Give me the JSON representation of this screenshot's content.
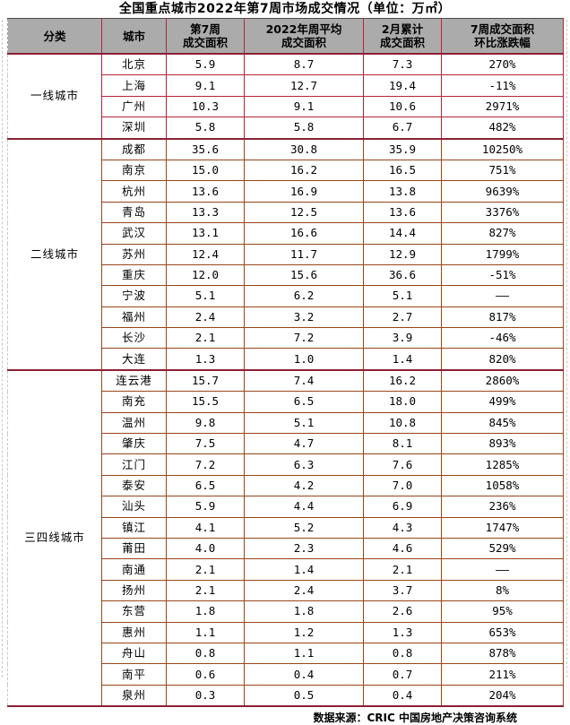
{
  "chart_data": {
    "type": "table",
    "title": "全国重点城市2022年第7周市场成交情况（单位：万㎡）",
    "source": "数据来源：CRIC 中国房地产决策咨询系统",
    "columns": [
      "分类",
      "城市",
      "第7周\n成交面积",
      "2022年周平均\n成交面积",
      "2月累计\n成交面积",
      "7周成交面积\n环比涨跌幅"
    ],
    "sections": [
      {
        "category": "一线城市",
        "border_color": "#b3243a",
        "rows": [
          {
            "city": "北京",
            "week7_area": "5.9",
            "weekly_avg_area": "8.7",
            "feb_total_area": "7.3",
            "wow_change": "270%"
          },
          {
            "city": "上海",
            "week7_area": "9.1",
            "weekly_avg_area": "12.7",
            "feb_total_area": "19.4",
            "wow_change": "-11%"
          },
          {
            "city": "广州",
            "week7_area": "10.3",
            "weekly_avg_area": "9.1",
            "feb_total_area": "10.6",
            "wow_change": "2971%"
          },
          {
            "city": "深圳",
            "week7_area": "5.8",
            "weekly_avg_area": "5.8",
            "feb_total_area": "6.7",
            "wow_change": "482%"
          }
        ]
      },
      {
        "category": "二线城市",
        "border_color": "#9a4518",
        "rows": [
          {
            "city": "成都",
            "week7_area": "35.6",
            "weekly_avg_area": "30.8",
            "feb_total_area": "35.9",
            "wow_change": "10250%"
          },
          {
            "city": "南京",
            "week7_area": "15.0",
            "weekly_avg_area": "16.2",
            "feb_total_area": "16.5",
            "wow_change": "751%"
          },
          {
            "city": "杭州",
            "week7_area": "13.6",
            "weekly_avg_area": "16.9",
            "feb_total_area": "13.8",
            "wow_change": "9639%"
          },
          {
            "city": "青岛",
            "week7_area": "13.3",
            "weekly_avg_area": "12.5",
            "feb_total_area": "13.6",
            "wow_change": "3376%"
          },
          {
            "city": "武汉",
            "week7_area": "13.1",
            "weekly_avg_area": "16.6",
            "feb_total_area": "14.4",
            "wow_change": "827%"
          },
          {
            "city": "苏州",
            "week7_area": "12.4",
            "weekly_avg_area": "11.7",
            "feb_total_area": "12.9",
            "wow_change": "1799%"
          },
          {
            "city": "重庆",
            "week7_area": "12.0",
            "weekly_avg_area": "15.6",
            "feb_total_area": "36.6",
            "wow_change": "-51%"
          },
          {
            "city": "宁波",
            "week7_area": "5.1",
            "weekly_avg_area": "6.2",
            "feb_total_area": "5.1",
            "wow_change": "——"
          },
          {
            "city": "福州",
            "week7_area": "2.4",
            "weekly_avg_area": "3.2",
            "feb_total_area": "2.7",
            "wow_change": "817%"
          },
          {
            "city": "长沙",
            "week7_area": "2.1",
            "weekly_avg_area": "7.2",
            "feb_total_area": "3.9",
            "wow_change": "-46%"
          },
          {
            "city": "大连",
            "week7_area": "1.3",
            "weekly_avg_area": "1.0",
            "feb_total_area": "1.4",
            "wow_change": "820%"
          }
        ]
      },
      {
        "category": "三四线城市",
        "border_color": "#9a4518",
        "rows": [
          {
            "city": "连云港",
            "week7_area": "15.7",
            "weekly_avg_area": "7.4",
            "feb_total_area": "16.2",
            "wow_change": "2860%"
          },
          {
            "city": "南充",
            "week7_area": "15.5",
            "weekly_avg_area": "6.5",
            "feb_total_area": "18.0",
            "wow_change": "499%"
          },
          {
            "city": "温州",
            "week7_area": "9.8",
            "weekly_avg_area": "5.1",
            "feb_total_area": "10.8",
            "wow_change": "845%"
          },
          {
            "city": "肇庆",
            "week7_area": "7.5",
            "weekly_avg_area": "4.7",
            "feb_total_area": "8.1",
            "wow_change": "893%"
          },
          {
            "city": "江门",
            "week7_area": "7.2",
            "weekly_avg_area": "6.3",
            "feb_total_area": "7.6",
            "wow_change": "1285%"
          },
          {
            "city": "泰安",
            "week7_area": "6.5",
            "weekly_avg_area": "4.2",
            "feb_total_area": "7.0",
            "wow_change": "1058%"
          },
          {
            "city": "汕头",
            "week7_area": "5.9",
            "weekly_avg_area": "4.4",
            "feb_total_area": "6.9",
            "wow_change": "236%"
          },
          {
            "city": "镇江",
            "week7_area": "4.1",
            "weekly_avg_area": "5.2",
            "feb_total_area": "4.3",
            "wow_change": "1747%"
          },
          {
            "city": "莆田",
            "week7_area": "4.0",
            "weekly_avg_area": "2.3",
            "feb_total_area": "4.6",
            "wow_change": "529%"
          },
          {
            "city": "南通",
            "week7_area": "2.1",
            "weekly_avg_area": "1.4",
            "feb_total_area": "2.1",
            "wow_change": "——"
          },
          {
            "city": "扬州",
            "week7_area": "2.1",
            "weekly_avg_area": "2.4",
            "feb_total_area": "3.7",
            "wow_change": "8%"
          },
          {
            "city": "东营",
            "week7_area": "1.8",
            "weekly_avg_area": "1.8",
            "feb_total_area": "2.6",
            "wow_change": "95%"
          },
          {
            "city": "惠州",
            "week7_area": "1.1",
            "weekly_avg_area": "1.2",
            "feb_total_area": "1.3",
            "wow_change": "653%"
          },
          {
            "city": "舟山",
            "week7_area": "0.8",
            "weekly_avg_area": "1.1",
            "feb_total_area": "0.8",
            "wow_change": "878%"
          },
          {
            "city": "南平",
            "week7_area": "0.6",
            "weekly_avg_area": "0.4",
            "feb_total_area": "0.7",
            "wow_change": "211%"
          },
          {
            "city": "泉州",
            "week7_area": "0.3",
            "weekly_avg_area": "0.5",
            "feb_total_area": "0.4",
            "wow_change": "204%"
          }
        ]
      }
    ],
    "colors": {
      "header_background": "#ababab",
      "tier1_border": "#b3243a",
      "tier23_border": "#9a4518",
      "section_separator": "#8b2035",
      "text": "#000000"
    }
  }
}
